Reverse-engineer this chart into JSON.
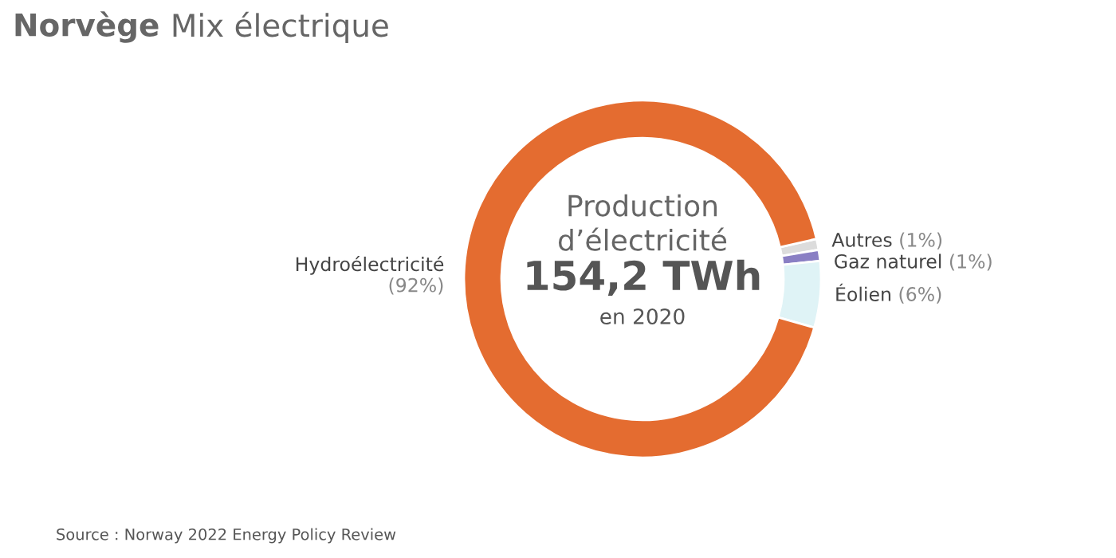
{
  "chart_data": {
    "type": "donut",
    "title": "Norvège",
    "subtitle": "Mix électrique",
    "categories": [
      "Autres",
      "Gaz naturel",
      "Éolien",
      "Hydroélectricité"
    ],
    "values": [
      1,
      1,
      6,
      92
    ],
    "value_labels": [
      "(1%)",
      "(1%)",
      "(6%)",
      "(92%)"
    ],
    "colors": [
      "#dcdcdc",
      "#8a7fc4",
      "#dff3f6",
      "#e46c30"
    ],
    "annotations": [
      "Production\nd’électricité",
      "154,2 TWh",
      "en 2020",
      "Source : Norway 2022 Energy Policy Review"
    ],
    "legend": false
  }
}
